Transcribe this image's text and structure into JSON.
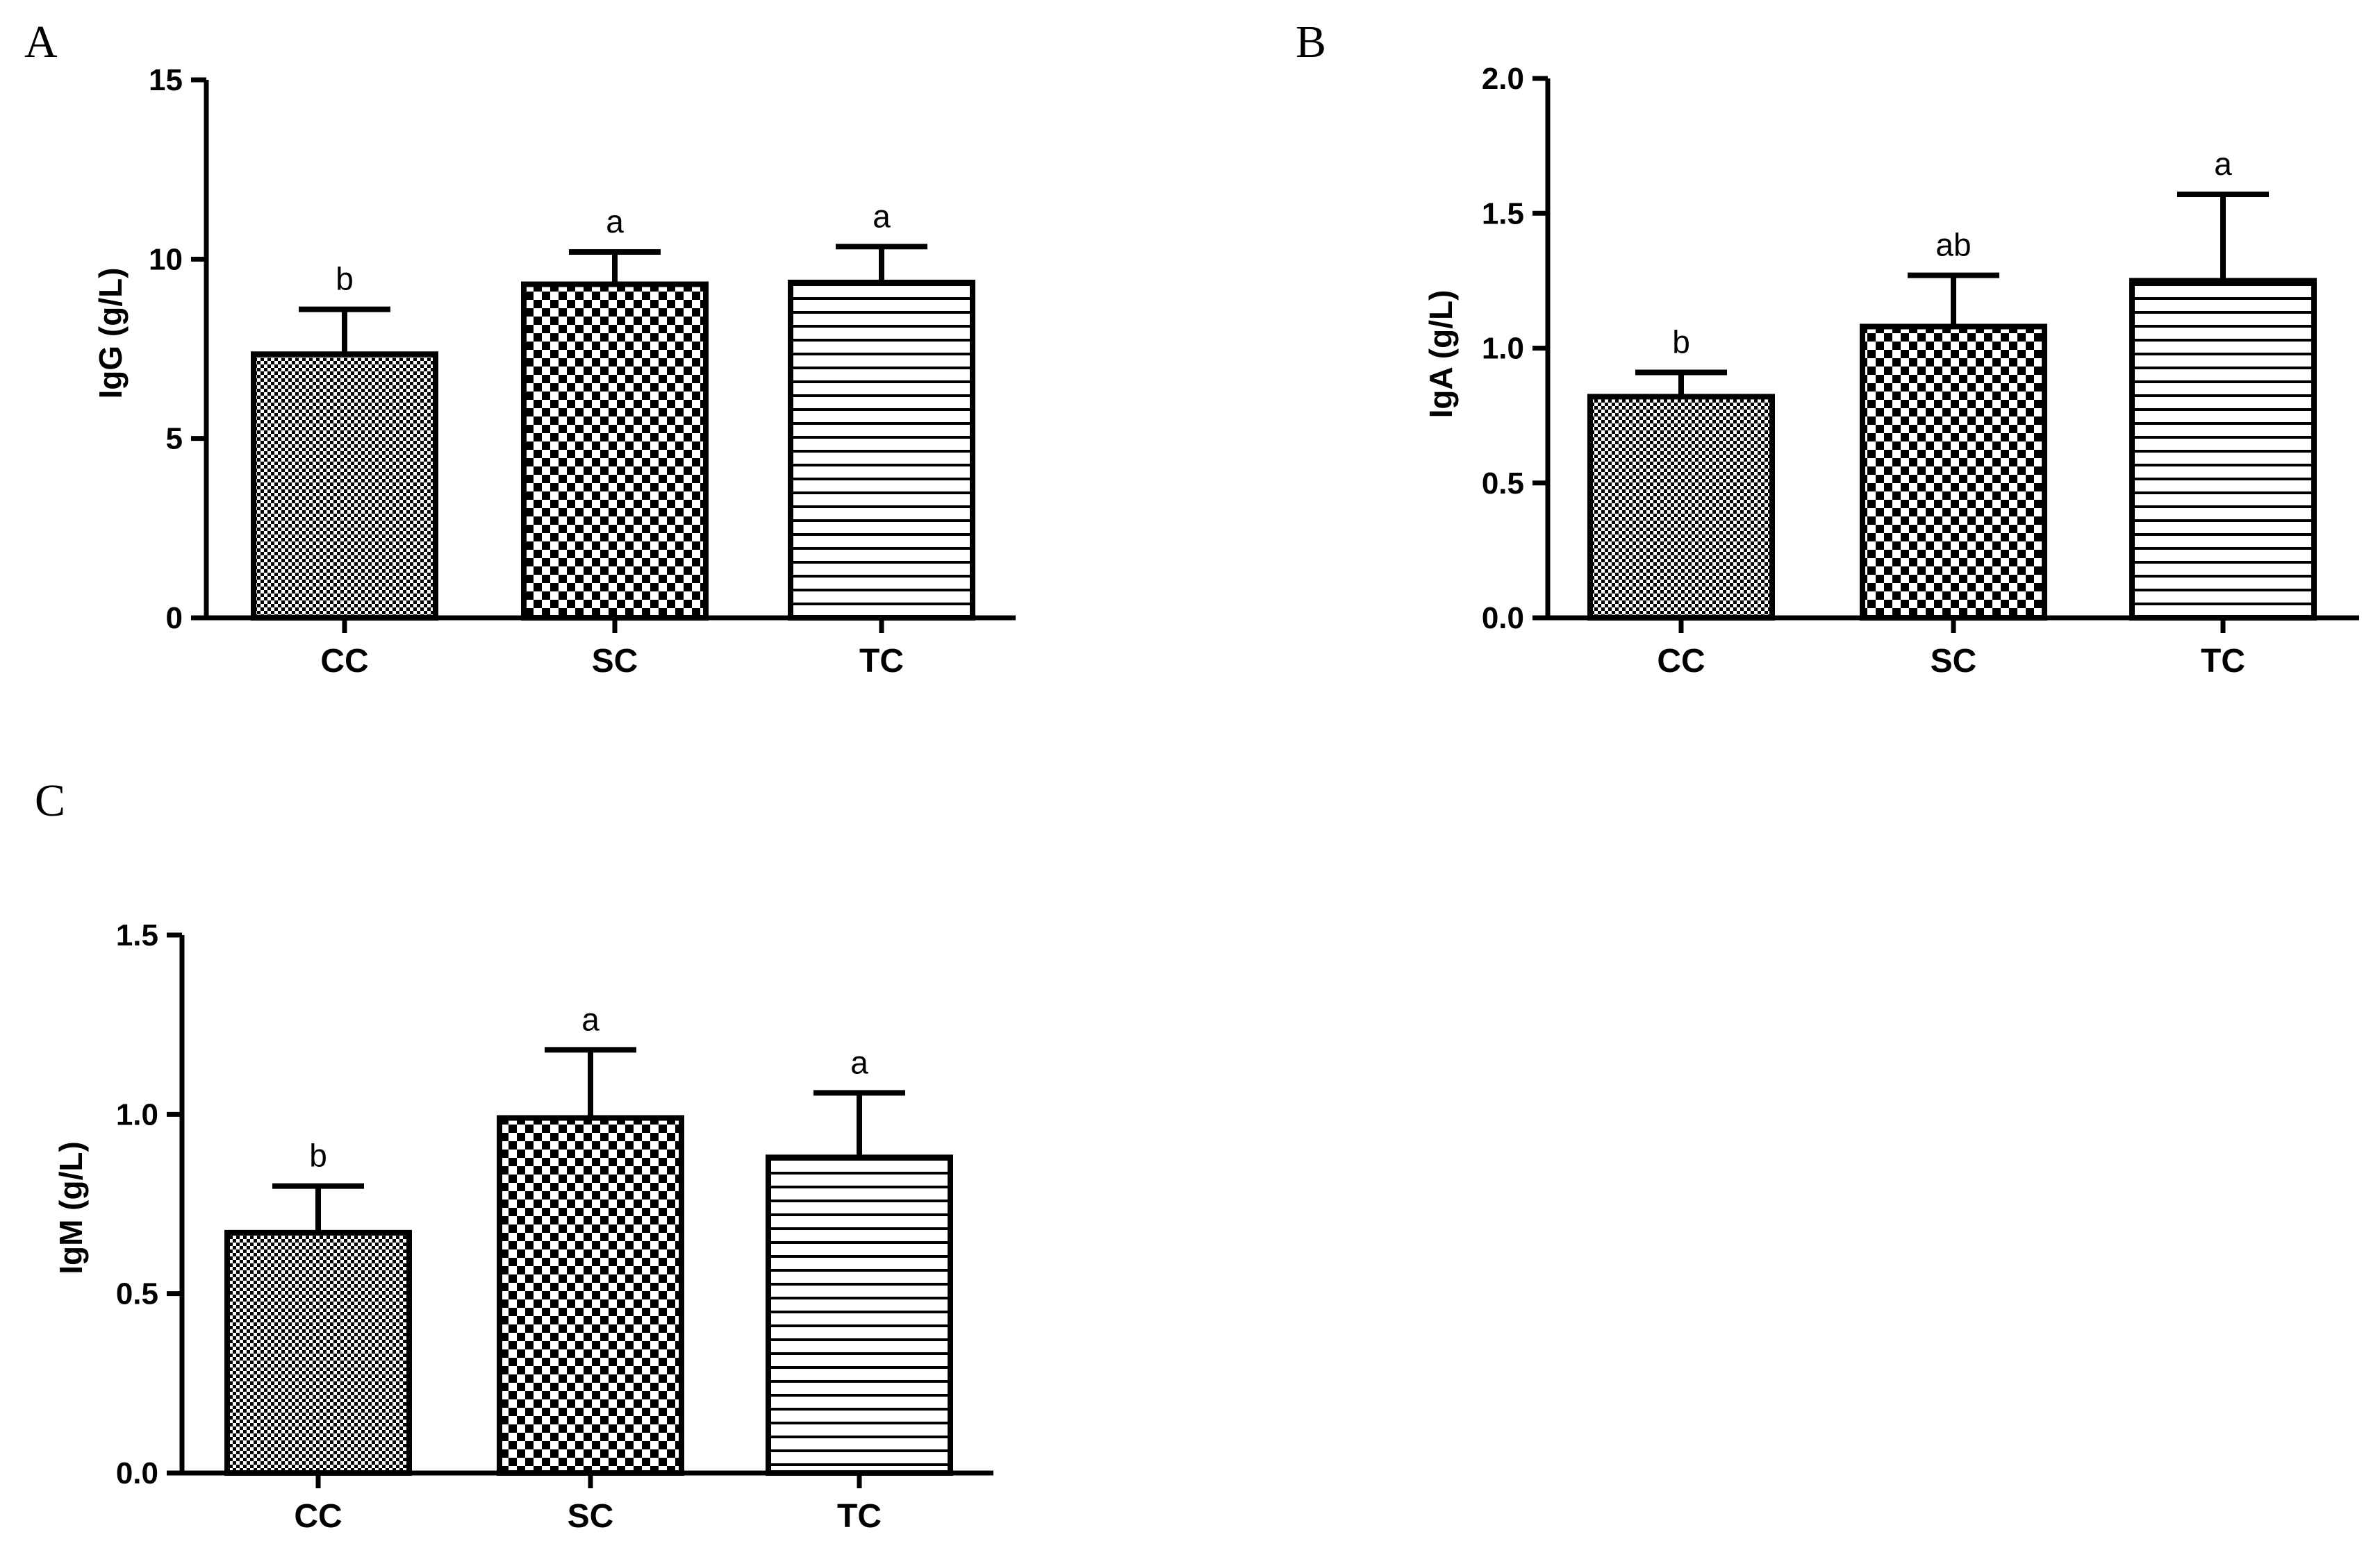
{
  "chart_data": [
    {
      "type": "bar",
      "panel": "A",
      "ylabel": "IgG (g/L)",
      "categories": [
        "CC",
        "SC",
        "TC"
      ],
      "values": [
        7.35,
        9.3,
        9.35
      ],
      "errors": [
        1.25,
        0.9,
        1.0
      ],
      "significance": [
        "b",
        "a",
        "a"
      ],
      "ylim": [
        0,
        15
      ],
      "yticks": [
        0,
        5,
        10,
        15
      ],
      "yticklabels": [
        "0",
        "5",
        "10",
        "15"
      ],
      "patterns": [
        "fine-check",
        "coarse-check",
        "hlines"
      ]
    },
    {
      "type": "bar",
      "panel": "B",
      "ylabel": "IgA (g/L)",
      "categories": [
        "CC",
        "SC",
        "TC"
      ],
      "values": [
        0.82,
        1.08,
        1.25
      ],
      "errors": [
        0.09,
        0.19,
        0.32
      ],
      "significance": [
        "b",
        "ab",
        "a"
      ],
      "ylim": [
        0,
        2.0
      ],
      "yticks": [
        0,
        0.5,
        1.0,
        1.5,
        2.0
      ],
      "yticklabels": [
        "0.0",
        "0.5",
        "1.0",
        "1.5",
        "2.0"
      ],
      "patterns": [
        "fine-check",
        "coarse-check",
        "hlines"
      ]
    },
    {
      "type": "bar",
      "panel": "C",
      "ylabel": "IgM (g/L)",
      "categories": [
        "CC",
        "SC",
        "TC"
      ],
      "values": [
        0.67,
        0.99,
        0.88
      ],
      "errors": [
        0.13,
        0.19,
        0.18
      ],
      "significance": [
        "b",
        "a",
        "a"
      ],
      "ylim": [
        0,
        1.5
      ],
      "yticks": [
        0,
        0.5,
        1.0,
        1.5
      ],
      "yticklabels": [
        "0.0",
        "0.5",
        "1.0",
        "1.5"
      ],
      "patterns": [
        "fine-check",
        "coarse-check",
        "hlines"
      ]
    }
  ]
}
